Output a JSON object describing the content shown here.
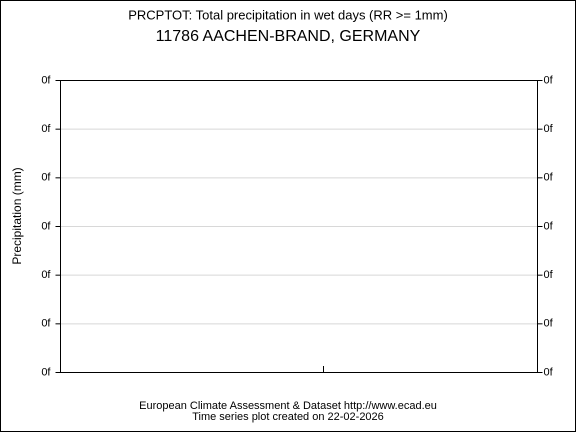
{
  "chart_data": {
    "type": "line",
    "title": "PRCPTOT: Total precipitation in wet days (RR >= 1mm)",
    "subtitle": "11786 AACHEN-BRAND, GERMANY",
    "ylabel": "Precipitation (mm)",
    "yticks": [
      "0f",
      "0f",
      "0f",
      "0f",
      "0f",
      "0f",
      "0f"
    ],
    "grid": true,
    "series": [],
    "footer": [
      "European Climate Assessment & Dataset  http://www.ecad.eu",
      "Time series plot created on 22-02-2026"
    ]
  }
}
